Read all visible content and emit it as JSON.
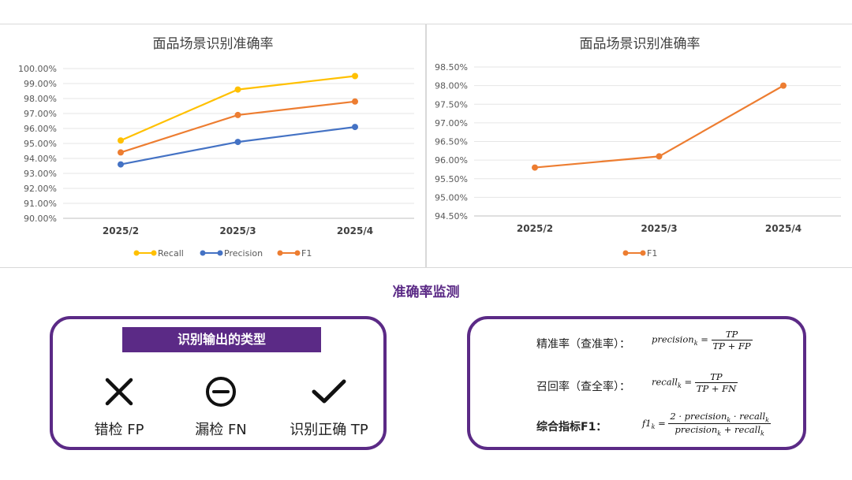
{
  "charts": [
    {
      "type": "line",
      "title": "面品场景识别准确率",
      "categories": [
        "2025/2",
        "2025/3",
        "2025/4"
      ],
      "ylim": [
        0.9,
        1.0
      ],
      "yticks": [
        "100.00%",
        "99.00%",
        "98.00%",
        "97.00%",
        "96.00%",
        "95.00%",
        "94.00%",
        "93.00%",
        "92.00%",
        "91.00%",
        "90.00%"
      ],
      "legend_position": "bottom",
      "series": [
        {
          "name": "Recall",
          "color": "#ffc000",
          "values": [
            0.952,
            0.986,
            0.995
          ]
        },
        {
          "name": "Precision",
          "color": "#4472c4",
          "values": [
            0.936,
            0.951,
            0.961
          ]
        },
        {
          "name": "F1",
          "color": "#ed7d31",
          "values": [
            0.944,
            0.969,
            0.978
          ]
        }
      ]
    },
    {
      "type": "line",
      "title": "面品场景识别准确率",
      "categories": [
        "2025/2",
        "2025/3",
        "2025/4"
      ],
      "ylim": [
        0.945,
        0.985
      ],
      "yticks": [
        "98.50%",
        "98.00%",
        "97.50%",
        "97.00%",
        "96.50%",
        "96.00%",
        "95.50%",
        "95.00%",
        "94.50%"
      ],
      "legend_position": "bottom",
      "series": [
        {
          "name": "F1",
          "color": "#ed7d31",
          "values": [
            0.958,
            0.961,
            0.98
          ]
        }
      ]
    }
  ],
  "section_title": "准确率监测",
  "types_card": {
    "banner": "识别输出的类型",
    "items": [
      {
        "icon": "cross-icon",
        "label": "错检 FP"
      },
      {
        "icon": "minus-circle-icon",
        "label": "漏检 FN"
      },
      {
        "icon": "check-icon",
        "label": "识别正确 TP"
      }
    ]
  },
  "formulas_card": {
    "precision_label": "精准率（查准率）：",
    "recall_label": "召回率（查全率）：",
    "f1_label": "综合指标F1：",
    "precision_lhs": "precision",
    "recall_lhs": "recall",
    "f1_lhs": "f1",
    "sub_k": "k",
    "eq": "=",
    "tp": "TP",
    "tp_fp": "TP + FP",
    "tp_fn": "TP + FN",
    "f1_num_a": "2 · precision",
    "f1_num_b": " · recall",
    "f1_den_a": "precision",
    "f1_den_b": " + recall"
  }
}
